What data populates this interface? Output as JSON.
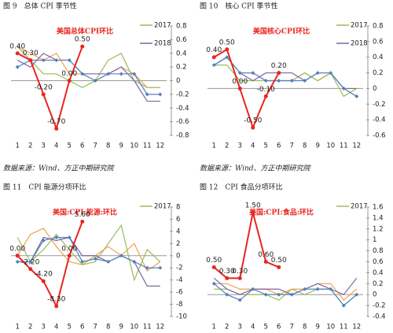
{
  "captions": [
    "图 9　总体 CPI 季节性",
    "图 10　核心 CPI 季节性",
    "图 11　CPI 能源分项环比",
    "图 12　CPI 食品分项环比"
  ],
  "sources": [
    "数据来源：Wind、方正中期研究院",
    "数据来源：Wind、方正中期研究院"
  ],
  "chart_data": [
    {
      "type": "line",
      "title": "美国总体CPI环比",
      "legend": "upper right",
      "categories": [
        "1",
        "2",
        "3",
        "4",
        "5",
        "6",
        "7",
        "8",
        "9",
        "10",
        "11",
        "12"
      ],
      "ylim": [
        -0.8,
        0.8
      ],
      "yticks": [
        -0.8,
        -0.6,
        -0.4,
        -0.2,
        0,
        0.2,
        0.4,
        0.6,
        0.8
      ],
      "series": [
        {
          "color": "#f5a04a",
          "values": [
            0.5,
            0.4,
            0.3,
            0.4,
            0.1,
            0.1,
            0.0,
            0.1,
            0.2,
            0.1,
            -0.1,
            -0.1
          ]
        },
        {
          "name": "2017",
          "color": "#9bbb59",
          "values": [
            0.5,
            0.3,
            0.1,
            0.1,
            0.0,
            -0.1,
            0.0,
            0.3,
            0.4,
            0.0,
            -0.1,
            -0.1
          ]
        },
        {
          "name": "2018",
          "color": "#8064a2",
          "values": [
            0.3,
            0.2,
            0.4,
            0.3,
            0.3,
            0.1,
            0.1,
            0.1,
            0.2,
            0.0,
            -0.3,
            -0.3
          ]
        },
        {
          "color": "#4f81bd",
          "marker": "diamond",
          "values": [
            0.2,
            0.3,
            0.3,
            0.3,
            0.3,
            0.1,
            0.0,
            0.1,
            0.1,
            0.1,
            -0.2,
            -0.2
          ]
        },
        {
          "color": "#e8251f",
          "marker": "circle",
          "values": [
            0.4,
            0.3,
            -0.2,
            -0.7,
            0.0,
            0.5,
            null,
            null,
            null,
            null,
            null,
            null
          ],
          "value_labels": [
            "0.40",
            "0.30",
            "-0.20",
            "-0.70",
            "0.00",
            "0.50",
            null,
            null,
            null,
            null,
            null,
            null
          ]
        }
      ]
    },
    {
      "type": "line",
      "title": "美国核心CPI环比",
      "legend": "upper right",
      "categories": [
        "1",
        "2",
        "3",
        "4",
        "5",
        "6",
        "7",
        "8",
        "9",
        "10",
        "11",
        "12"
      ],
      "ylim": [
        -0.6,
        0.8
      ],
      "yticks": [
        -0.6,
        -0.4,
        -0.2,
        0,
        0.2,
        0.4,
        0.6,
        0.8
      ],
      "series": [
        {
          "color": "#f5a04a",
          "values": [
            0.3,
            0.4,
            0.2,
            0.2,
            0.1,
            0.1,
            0.1,
            0.2,
            0.1,
            0.2,
            0.0,
            -0.1
          ]
        },
        {
          "name": "2017",
          "color": "#9bbb59",
          "values": [
            0.3,
            0.3,
            0.1,
            0.1,
            0.1,
            0.1,
            0.1,
            0.2,
            0.1,
            0.2,
            -0.1,
            0.0
          ]
        },
        {
          "name": "2018",
          "color": "#8064a2",
          "values": [
            0.3,
            0.4,
            0.2,
            0.1,
            0.2,
            0.2,
            0.2,
            0.1,
            0.2,
            0.2,
            0.0,
            0.0
          ]
        },
        {
          "color": "#4f81bd",
          "marker": "diamond",
          "values": [
            0.3,
            0.4,
            0.2,
            0.2,
            0.1,
            0.1,
            0.1,
            0.1,
            0.2,
            0.2,
            0.0,
            -0.1
          ]
        },
        {
          "color": "#e8251f",
          "marker": "circle",
          "values": [
            0.4,
            0.5,
            0.0,
            -0.5,
            -0.1,
            0.2,
            null,
            null,
            null,
            null,
            null,
            null
          ],
          "value_labels": [
            "0.40",
            "0.50",
            "0.00",
            "-0.50",
            "-0.10",
            "0.20",
            null,
            null,
            null,
            null,
            null,
            null
          ]
        }
      ]
    },
    {
      "type": "line",
      "title": "美国:CPI:能源:环比",
      "legend": "upper right",
      "categories": [
        "1",
        "2",
        "3",
        "4",
        "5",
        "6",
        "7",
        "8",
        "9",
        "10",
        "11",
        "12"
      ],
      "ylim": [
        -10,
        8
      ],
      "yticks": [
        -10,
        -8,
        -6,
        -4,
        -2,
        0,
        2,
        4,
        6,
        8
      ],
      "series": [
        {
          "color": "#f5a04a",
          "values": [
            0.0,
            3.5,
            4.5,
            1.5,
            -1.0,
            -1.5,
            0.0,
            1.5,
            0.0,
            2.0,
            -2.5,
            -1.0
          ]
        },
        {
          "name": "2017",
          "color": "#9bbb59",
          "values": [
            3.0,
            -1.0,
            1.0,
            3.5,
            1.0,
            -1.5,
            -1.0,
            2.0,
            5.0,
            -4.0,
            1.0,
            -1.0
          ]
        },
        {
          "color": "#8064a2",
          "values": [
            -1.0,
            -1.0,
            3.0,
            2.5,
            3.0,
            0.0,
            0.0,
            -1.0,
            0.0,
            -1.0,
            -5.0,
            -5.0
          ]
        },
        {
          "color": "#4f81bd",
          "marker": "diamond",
          "values": [
            -1.0,
            -1.0,
            2.5,
            3.0,
            3.0,
            -1.0,
            -0.5,
            -1.0,
            0.0,
            -1.0,
            -2.0,
            -2.0
          ]
        },
        {
          "color": "#e8251f",
          "marker": "circle",
          "values": [
            0.0,
            -2.2,
            -4.2,
            -8.3,
            0.0,
            5.6,
            null,
            null,
            null,
            null,
            null,
            null
          ],
          "value_labels": [
            "0.00",
            "-2.20",
            "-4.20",
            "-8.30",
            "0.00",
            "5.60",
            null,
            null,
            null,
            null,
            null,
            null
          ]
        }
      ]
    },
    {
      "type": "line",
      "title": "美国:CPI:食品:环比",
      "legend": "upper right",
      "categories": [
        "1",
        "2",
        "3",
        "4",
        "5",
        "6",
        "7",
        "8",
        "9",
        "10",
        "11",
        "12"
      ],
      "ylim": [
        -0.4,
        1.6
      ],
      "yticks": [
        -0.4,
        -0.2,
        0,
        0.2,
        0.4,
        0.6,
        0.8,
        1,
        1.2,
        1.4,
        1.6
      ],
      "series": [
        {
          "color": "#f5a04a",
          "values": [
            0.2,
            0.2,
            0.1,
            0.1,
            0.1,
            0.0,
            0.1,
            0.1,
            0.2,
            0.2,
            -0.1,
            0.1
          ]
        },
        {
          "name": "2017",
          "color": "#9bbb59",
          "values": [
            0.1,
            0.1,
            0.0,
            0.0,
            0.0,
            -0.1,
            0.1,
            0.0,
            0.1,
            0.1,
            -0.2,
            0.0
          ]
        },
        {
          "color": "#8064a2",
          "values": [
            0.3,
            0.1,
            0.0,
            0.1,
            0.1,
            0.1,
            0.0,
            0.1,
            0.2,
            0.1,
            0.0,
            0.3
          ]
        },
        {
          "color": "#4f81bd",
          "marker": "diamond",
          "values": [
            0.2,
            0.0,
            -0.1,
            0.1,
            0.0,
            0.0,
            0.0,
            0.1,
            0.1,
            0.1,
            -0.2,
            0.0
          ]
        },
        {
          "color": "#e8251f",
          "marker": "circle",
          "values": [
            0.5,
            0.3,
            0.3,
            1.5,
            0.6,
            0.5,
            null,
            null,
            null,
            null,
            null,
            null
          ],
          "value_labels": [
            "0.50",
            "0.30",
            "0.30",
            "1.50",
            "0.60",
            "0.50",
            null,
            null,
            null,
            null,
            null,
            null
          ]
        }
      ]
    }
  ]
}
